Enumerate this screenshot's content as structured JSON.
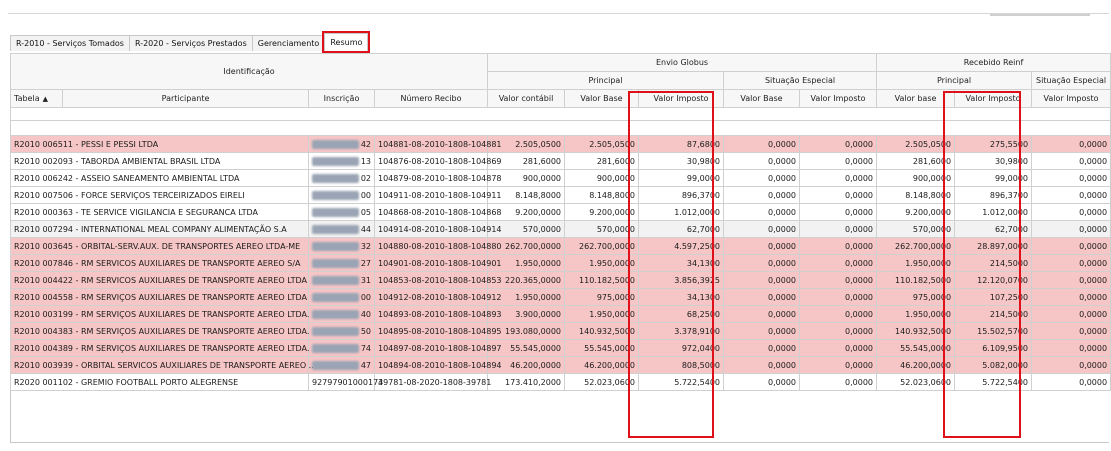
{
  "tabs": [
    "R-2010 - Serviços Tomados",
    "R-2020 - Serviços Prestados",
    "Gerenciamento",
    "Resumo"
  ],
  "active_tab": "Resumo",
  "header": {
    "identificacao": "Identificação",
    "envio_globus": "Envio Globus",
    "recebido_reinf": "Recebido Reinf",
    "principal": "Principal",
    "situacao_especial": "Situação Especial",
    "columns": [
      "Tabela",
      "Participante",
      "Inscrição",
      "Número Recibo",
      "Valor contábil",
      "Valor Base",
      "Valor Imposto",
      "Valor Base",
      "Valor Imposto",
      "Valor base",
      "Valor Imposto",
      "Valor Imposto"
    ]
  },
  "colors": {
    "highlight_row": "#f6c6c6",
    "highlight_box": "#e0101a"
  },
  "rows": [
    {
      "style": "pink",
      "participante": "R2010 006511 - PESSI E PESSI LTDA",
      "inscricao_tail": "42",
      "recibo": "104881-08-2010-1808-104881",
      "valor_contabil": "2.505,0500",
      "valor_base": "2.505,0500",
      "valor_imposto": "87,6800",
      "se_base": "0,0000",
      "se_imposto": "0,0000",
      "r_base": "2.505,0500",
      "r_imposto": "275,5500",
      "r_se": "0,0000"
    },
    {
      "style": "white",
      "participante": "R2010 002093 - TABORDA AMBIENTAL BRASIL LTDA",
      "inscricao_tail": "13",
      "recibo": "104876-08-2010-1808-104869",
      "valor_contabil": "281,6000",
      "valor_base": "281,6000",
      "valor_imposto": "30,9800",
      "se_base": "0,0000",
      "se_imposto": "0,0000",
      "r_base": "281,6000",
      "r_imposto": "30,9800",
      "r_se": "0,0000"
    },
    {
      "style": "white",
      "participante": "R2010 006242 - ASSEIO SANEAMENTO AMBIENTAL LTDA",
      "inscricao_tail": "02",
      "recibo": "104879-08-2010-1808-104878",
      "valor_contabil": "900,0000",
      "valor_base": "900,0000",
      "valor_imposto": "99,0000",
      "se_base": "0,0000",
      "se_imposto": "0,0000",
      "r_base": "900,0000",
      "r_imposto": "99,0000",
      "r_se": "0,0000"
    },
    {
      "style": "white",
      "participante": "R2010 007506 - FORCE SERVIÇOS TERCEIRIZADOS EIRELI",
      "inscricao_tail": "00",
      "recibo": "104911-08-2010-1808-104911",
      "valor_contabil": "8.148,8000",
      "valor_base": "8.148,8000",
      "valor_imposto": "896,3700",
      "se_base": "0,0000",
      "se_imposto": "0,0000",
      "r_base": "8.148,8000",
      "r_imposto": "896,3700",
      "r_se": "0,0000"
    },
    {
      "style": "white",
      "participante": "R2010 000363 - TE SERVICE VIGILANCIA E SEGURANCA LTDA",
      "inscricao_tail": "05",
      "recibo": "104868-08-2010-1808-104868",
      "valor_contabil": "9.200,0000",
      "valor_base": "9.200,0000",
      "valor_imposto": "1.012,0000",
      "se_base": "0,0000",
      "se_imposto": "0,0000",
      "r_base": "9.200,0000",
      "r_imposto": "1.012,0000",
      "r_se": "0,0000"
    },
    {
      "style": "gray",
      "participante": "R2010 007294 - INTERNATIONAL MEAL COMPANY ALIMENTAÇÃO S.A",
      "inscricao_tail": "44",
      "recibo": "104914-08-2010-1808-104914",
      "valor_contabil": "570,0000",
      "valor_base": "570,0000",
      "valor_imposto": "62,7000",
      "se_base": "0,0000",
      "se_imposto": "0,0000",
      "r_base": "570,0000",
      "r_imposto": "62,7000",
      "r_se": "0,0000"
    },
    {
      "style": "pink",
      "participante": "R2010 003645 - ORBITAL-SERV.AUX. DE TRANSPORTES AEREO LTDA-ME",
      "inscricao_tail": "32",
      "recibo": "104880-08-2010-1808-104880",
      "valor_contabil": "262.700,0000",
      "valor_base": "262.700,0000",
      "valor_imposto": "4.597,2500",
      "se_base": "0,0000",
      "se_imposto": "0,0000",
      "r_base": "262.700,0000",
      "r_imposto": "28.897,0000",
      "r_se": "0,0000"
    },
    {
      "style": "pink",
      "participante": "R2010 007846 - RM SERVICOS AUXILIARES DE TRANSPORTE AEREO S/A",
      "inscricao_tail": "27",
      "recibo": "104901-08-2010-1808-104901",
      "valor_contabil": "1.950,0000",
      "valor_base": "1.950,0000",
      "valor_imposto": "34,1300",
      "se_base": "0,0000",
      "se_imposto": "0,0000",
      "r_base": "1.950,0000",
      "r_imposto": "214,5000",
      "r_se": "0,0000"
    },
    {
      "style": "pink",
      "participante": "R2010 004422 - RM SERVICOS AUXILIARES DE TRANSPORTE AEREO LTDA",
      "inscricao_tail": "31",
      "recibo": "104853-08-2010-1808-104853",
      "valor_contabil": "220.365,0000",
      "valor_base": "110.182,5000",
      "valor_imposto": "3.856,3925",
      "se_base": "0,0000",
      "se_imposto": "0,0000",
      "r_base": "110.182,5000",
      "r_imposto": "12.120,0700",
      "r_se": "0,0000"
    },
    {
      "style": "pink",
      "participante": "R2010 004558 - RM SERVIÇOS AUXILIARES DE TRANSPORTE AEREO LTDA",
      "inscricao_tail": "00",
      "recibo": "104912-08-2010-1808-104912",
      "valor_contabil": "1.950,0000",
      "valor_base": "975,0000",
      "valor_imposto": "34,1300",
      "se_base": "0,0000",
      "se_imposto": "0,0000",
      "r_base": "975,0000",
      "r_imposto": "107,2500",
      "r_se": "0,0000"
    },
    {
      "style": "pink",
      "participante": "R2010 003199 - RM SERVIÇOS AUXILIARES DE TRANSPORTE AEREO LTDA.",
      "inscricao_tail": "40",
      "recibo": "104893-08-2010-1808-104893",
      "valor_contabil": "3.900,0000",
      "valor_base": "1.950,0000",
      "valor_imposto": "68,2500",
      "se_base": "0,0000",
      "se_imposto": "0,0000",
      "r_base": "1.950,0000",
      "r_imposto": "214,5000",
      "r_se": "0,0000"
    },
    {
      "style": "pink",
      "participante": "R2010 004383 - RM SERVIÇOS AUXILIARES DE TRANSPORTE AEREO LTDA.",
      "inscricao_tail": "50",
      "recibo": "104895-08-2010-1808-104895",
      "valor_contabil": "193.080,0000",
      "valor_base": "140.932,5000",
      "valor_imposto": "3.378,9100",
      "se_base": "0,0000",
      "se_imposto": "0,0000",
      "r_base": "140.932,5000",
      "r_imposto": "15.502,5700",
      "r_se": "0,0000"
    },
    {
      "style": "pink",
      "participante": "R2010 004389 - RM SERVIÇOS AUXILIARES DE TRANSPORTE AEREO LTDA.",
      "inscricao_tail": "74",
      "recibo": "104897-08-2010-1808-104897",
      "valor_contabil": "55.545,0000",
      "valor_base": "55.545,0000",
      "valor_imposto": "972,0400",
      "se_base": "0,0000",
      "se_imposto": "0,0000",
      "r_base": "55.545,0000",
      "r_imposto": "6.109,9500",
      "r_se": "0,0000"
    },
    {
      "style": "pink",
      "participante": "R2010 003939 - ORBITAL SERVICOS AUXILIARES DE TRANSPORTE AEREO ...",
      "inscricao_tail": "47",
      "recibo": "104894-08-2010-1808-104894",
      "valor_contabil": "46.200,0000",
      "valor_base": "46.200,0000",
      "valor_imposto": "808,5000",
      "se_base": "0,0000",
      "se_imposto": "0,0000",
      "r_base": "46.200,0000",
      "r_imposto": "5.082,0000",
      "r_se": "0,0000"
    },
    {
      "style": "white",
      "participante": "R2020 001102 - GREMIO FOOTBALL PORTO ALEGRENSE",
      "inscricao_full": "92797901000174",
      "recibo": "39781-08-2020-1808-39781",
      "valor_contabil": "173.410,2000",
      "valor_base": "52.023,0600",
      "valor_imposto": "5.722,5400",
      "se_base": "0,0000",
      "se_imposto": "0,0000",
      "r_base": "52.023,0600",
      "r_imposto": "5.722,5400",
      "r_se": "0,0000"
    }
  ]
}
